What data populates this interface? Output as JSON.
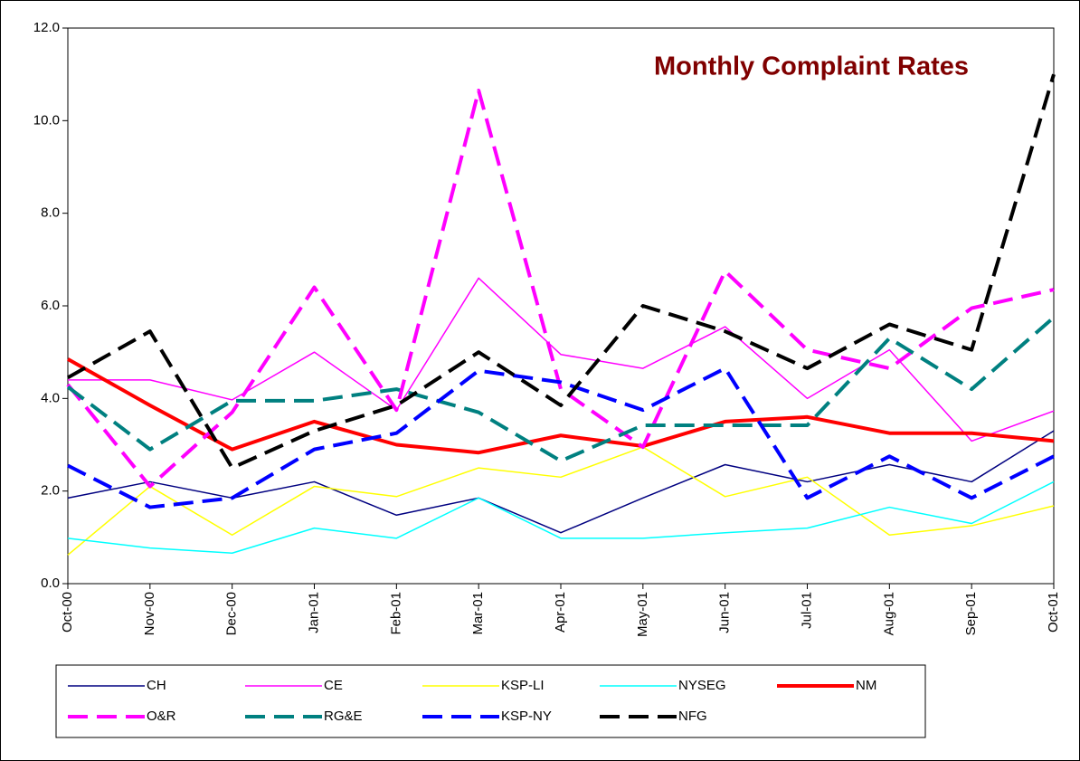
{
  "chart_data": {
    "type": "line",
    "title": "Monthly Complaint Rates",
    "categories": [
      "Oct-00",
      "Nov-00",
      "Dec-00",
      "Jan-01",
      "Feb-01",
      "Mar-01",
      "Apr-01",
      "May-01",
      "Jun-01",
      "Jul-01",
      "Aug-01",
      "Sep-01",
      "Oct-01"
    ],
    "ylim": [
      0,
      12
    ],
    "yticks": [
      {
        "value": 0,
        "label": "0.0"
      },
      {
        "value": 2,
        "label": "2.0"
      },
      {
        "value": 4,
        "label": "4.0"
      },
      {
        "value": 6,
        "label": "6.0"
      },
      {
        "value": 8,
        "label": "8.0"
      },
      {
        "value": 10,
        "label": "10.0"
      },
      {
        "value": 12,
        "label": "12.0"
      }
    ],
    "legend": "bottom",
    "series": [
      {
        "name": "CH",
        "color": "#000080",
        "style": "solid",
        "weight": "thin",
        "values": [
          1.85,
          2.2,
          1.85,
          2.2,
          1.48,
          1.85,
          1.1,
          1.85,
          2.57,
          2.2,
          2.57,
          2.2,
          3.3
        ]
      },
      {
        "name": "CE",
        "color": "#ff00ff",
        "style": "solid",
        "weight": "thin",
        "values": [
          4.4,
          4.4,
          3.97,
          5.0,
          3.75,
          6.6,
          4.95,
          4.65,
          5.55,
          4.0,
          5.05,
          3.08,
          3.73
        ]
      },
      {
        "name": "KSP-LI",
        "color": "#ffff00",
        "style": "solid",
        "weight": "thin",
        "values": [
          0.62,
          2.1,
          1.05,
          2.1,
          1.88,
          2.5,
          2.3,
          2.95,
          1.88,
          2.3,
          1.05,
          1.25,
          1.68
        ]
      },
      {
        "name": "NYSEG",
        "color": "#00ffff",
        "style": "solid",
        "weight": "thin",
        "values": [
          0.98,
          0.77,
          0.66,
          1.2,
          0.98,
          1.85,
          0.98,
          0.98,
          1.1,
          1.2,
          1.65,
          1.3,
          2.2
        ]
      },
      {
        "name": "NM",
        "color": "#ff0000",
        "style": "solid",
        "weight": "thick",
        "values": [
          4.85,
          3.85,
          2.9,
          3.5,
          3.0,
          2.83,
          3.2,
          2.97,
          3.5,
          3.6,
          3.25,
          3.25,
          3.08
        ]
      },
      {
        "name": "O&R",
        "color": "#ff00ff",
        "style": "dashed",
        "weight": "thick",
        "values": [
          4.3,
          2.1,
          3.7,
          6.4,
          3.75,
          10.65,
          4.2,
          2.95,
          6.75,
          5.05,
          4.65,
          5.95,
          6.35
        ]
      },
      {
        "name": "RG&E",
        "color": "#008080",
        "style": "dashed",
        "weight": "thick",
        "values": [
          4.25,
          2.9,
          3.95,
          3.95,
          4.2,
          3.7,
          2.65,
          3.42,
          3.42,
          3.42,
          5.3,
          4.2,
          5.75
        ]
      },
      {
        "name": "KSP-NY",
        "color": "#0000ff",
        "style": "dashed",
        "weight": "thick",
        "values": [
          2.55,
          1.65,
          1.85,
          2.9,
          3.25,
          4.6,
          4.35,
          3.75,
          4.65,
          1.85,
          2.75,
          1.85,
          2.75
        ]
      },
      {
        "name": "NFG",
        "color": "#000000",
        "style": "dashed",
        "weight": "thick",
        "values": [
          4.45,
          5.45,
          2.5,
          3.3,
          3.85,
          5.0,
          3.85,
          6.0,
          5.45,
          4.65,
          5.6,
          5.05,
          11.0
        ]
      }
    ]
  }
}
